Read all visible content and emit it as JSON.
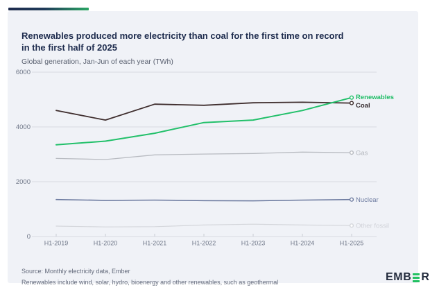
{
  "header": {
    "title_line1": "Renewables produced more electricity than coal for the first time on record",
    "title_line2": "in the first half of 2025",
    "subtitle": "Global generation, Jan-Jun of each year (TWh)"
  },
  "footer": {
    "source": "Source: Monthly electricity data, Ember",
    "note": "Renewables include wind, solar, hydro, bioenergy and other renewables, such as geothermal"
  },
  "logo": {
    "pre": "EMB",
    "post": "R",
    "bars_color": "#21c161",
    "name": "Ember"
  },
  "colors": {
    "accent_navy": "#1d2b4e",
    "accent_green": "#2aa564",
    "title_text": "#1d2b4d",
    "card_background": "#f0f2f7",
    "gridline": "#d9dbe1",
    "axis_text": "#6e7687"
  },
  "chart_data": {
    "type": "line",
    "title": "Renewables produced more electricity than coal for the first time on record in the first half of 2025",
    "subtitle": "Global generation, Jan-Jun of each year (TWh)",
    "unit": "TWh",
    "xlabel": "",
    "ylabel": "",
    "categories": [
      "H1-2019",
      "H1-2020",
      "H1-2021",
      "H1-2022",
      "H1-2023",
      "H1-2024",
      "H1-2025"
    ],
    "y_ticks": [
      6000,
      4000,
      2000,
      0
    ],
    "ylim": [
      0,
      6000
    ],
    "grid": "horizontal",
    "legend_position": "line-end-labels",
    "series": [
      {
        "name": "Renewables",
        "color": "#22c06a",
        "label_color": "#1fbd66",
        "emphasis": true,
        "width": 2,
        "label_dy": -1,
        "values": [
          3350,
          3480,
          3770,
          4160,
          4250,
          4600,
          5070
        ]
      },
      {
        "name": "Coal",
        "color": "#3f2e2e",
        "label_color": "#32282b",
        "emphasis": true,
        "width": 1.8,
        "label_dy": 3,
        "values": [
          4600,
          4250,
          4830,
          4790,
          4880,
          4900,
          4870
        ]
      },
      {
        "name": "Gas",
        "color": "#b8bbc1",
        "label_color": "#b4b7bd",
        "emphasis": false,
        "width": 1.3,
        "label_dy": 0,
        "values": [
          2850,
          2810,
          2980,
          3010,
          3030,
          3080,
          3060
        ]
      },
      {
        "name": "Nuclear",
        "color": "#6d7ba0",
        "label_color": "#6d7ba0",
        "emphasis": false,
        "width": 1.6,
        "label_dy": 0,
        "values": [
          1350,
          1320,
          1330,
          1310,
          1300,
          1330,
          1350
        ]
      },
      {
        "name": "Other fossil",
        "color": "#d4d6db",
        "label_color": "#d0d2d8",
        "emphasis": false,
        "width": 1.2,
        "label_dy": 0,
        "values": [
          380,
          350,
          360,
          420,
          450,
          420,
          400
        ]
      }
    ]
  }
}
